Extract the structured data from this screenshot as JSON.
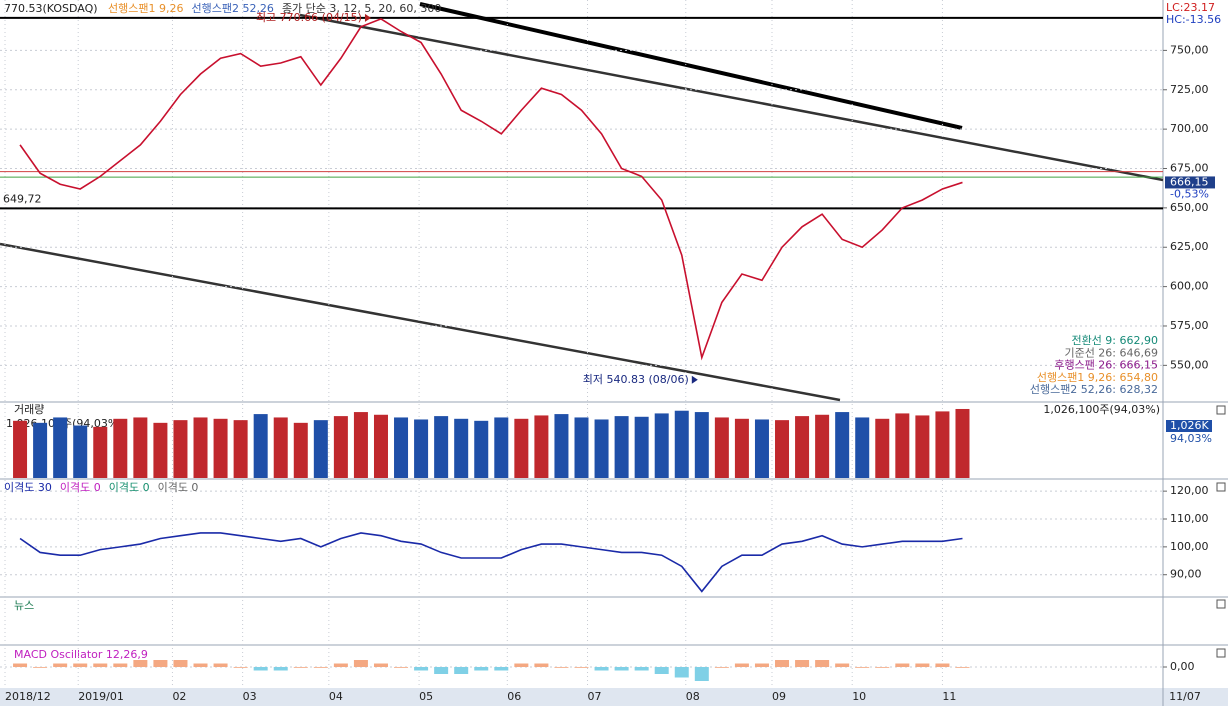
{
  "chart_data": [
    {
      "type": "line",
      "title": "770.53(KOSDAQ)",
      "legend_items": [
        {
          "text": "선행스팬1 9,26",
          "color": "#e8902a"
        },
        {
          "text": "선행스팬2 52,26",
          "color": "#3a62b8"
        },
        {
          "text": "종가 단순 3, 12, 5, 20, 60, 300",
          "color": "#333333"
        }
      ],
      "x": [
        0,
        1,
        2,
        3,
        4,
        5,
        6,
        7,
        8,
        9,
        10,
        11,
        12,
        13,
        14,
        15,
        16,
        17,
        18,
        19,
        20,
        21,
        22,
        23,
        24,
        25,
        26,
        27,
        28,
        29,
        30,
        31,
        32,
        33,
        34,
        35,
        36,
        37,
        38,
        39,
        40,
        41,
        42,
        43,
        44,
        45,
        46,
        47
      ],
      "series": [
        {
          "name": "종가",
          "color": "#c8102e",
          "values": [
            690,
            672,
            665,
            662,
            670,
            680,
            690,
            705,
            722,
            735,
            745,
            748,
            740,
            742,
            746,
            728,
            745,
            765,
            770,
            762,
            755,
            735,
            712,
            705,
            697,
            712,
            726,
            722,
            712,
            697,
            675,
            670,
            655,
            620,
            555,
            590,
            608,
            604,
            625,
            638,
            646,
            630,
            625,
            636,
            650,
            655,
            662,
            666.15
          ]
        }
      ],
      "xlim": [
        -1,
        57
      ],
      "xticks": [
        {
          "value": -0.75,
          "label": "2018/12"
        },
        {
          "value": 2.9,
          "label": "2019/01"
        },
        {
          "value": 7.6,
          "label": "02"
        },
        {
          "value": 11.1,
          "label": "03"
        },
        {
          "value": 15.4,
          "label": "04"
        },
        {
          "value": 19.9,
          "label": "05"
        },
        {
          "value": 24.3,
          "label": "06"
        },
        {
          "value": 28.3,
          "label": "07"
        },
        {
          "value": 33.2,
          "label": "08"
        },
        {
          "value": 37.5,
          "label": "09"
        },
        {
          "value": 41.5,
          "label": "10"
        },
        {
          "value": 46.0,
          "label": "11"
        }
      ],
      "last_date": "11/07",
      "ylim": [
        528,
        782
      ],
      "yticks": [
        {
          "value": 550,
          "label": "550,00"
        },
        {
          "value": 575,
          "label": "575,00"
        },
        {
          "value": 600,
          "label": "600,00"
        },
        {
          "value": 625,
          "label": "625,00"
        },
        {
          "value": 650,
          "label": "650,00"
        },
        {
          "value": 675,
          "label": "675,00"
        },
        {
          "value": 700,
          "label": "700,00"
        },
        {
          "value": 725,
          "label": "725,00"
        },
        {
          "value": 750,
          "label": "750,00"
        }
      ],
      "grid": true,
      "reference_lines": [
        {
          "value": 770.66,
          "color": "#000000"
        },
        {
          "value": 673,
          "color": "#d04040"
        },
        {
          "value": 669.5,
          "color": "#40a040"
        },
        {
          "value": 649.72,
          "label": "649,72",
          "color": "#000000"
        }
      ],
      "annotations": [
        {
          "text": "최고 770.66 (04/15)",
          "x": 17.5,
          "y": 770.66,
          "color": "#b02020"
        },
        {
          "text": "최저 540.83 (08/06)",
          "x": 33.8,
          "y": 540.83,
          "color": "#1a2a80"
        }
      ],
      "last_price": {
        "value": 666.15,
        "label": "666,15"
      },
      "change_label": "-0,53%",
      "lc_label": "LC:23.17",
      "hc_label": "HC:-13.56",
      "indicator_labels": [
        {
          "text": "전환선 9: 662,90",
          "color": "#168a78"
        },
        {
          "text": "기준선 26: 646,69",
          "color": "#666666"
        },
        {
          "text": "후행스팬 26: 666,15",
          "color": "#8b1a8b"
        },
        {
          "text": "선행스팬1 9,26: 654,80",
          "color": "#e8902a"
        },
        {
          "text": "선행스팬2 52,26: 628,32",
          "color": "#4a6a9a"
        }
      ]
    },
    {
      "type": "bar",
      "title": "거래량",
      "value_text": "1,026,100주(94,03%)",
      "box_label": "1,026K",
      "box_ratio": "94,03%",
      "colors": {
        "up": "#c0282d",
        "down": "#1f4fa8"
      },
      "values": [
        850,
        820,
        900,
        780,
        760,
        880,
        900,
        820,
        860,
        900,
        880,
        860,
        950,
        900,
        820,
        860,
        920,
        980,
        940,
        900,
        870,
        920,
        880,
        850,
        900,
        880,
        930,
        950,
        900,
        870,
        920,
        910,
        960,
        1000,
        980,
        900,
        880,
        870,
        860,
        920,
        940,
        980,
        900,
        880,
        960,
        930,
        990,
        1026
      ],
      "ylim": [
        0,
        1100
      ]
    },
    {
      "type": "line",
      "legend_items": [
        {
          "text": "이격도 0",
          "color": "#c020c0"
        },
        {
          "text": "이격도 0",
          "color": "#189070"
        },
        {
          "text": "이격도 0",
          "color": "#666666"
        }
      ],
      "series": [
        {
          "name": "이격도 30",
          "color": "#1a2aa8",
          "values": [
            103,
            98,
            97,
            97,
            99,
            100,
            101,
            103,
            104,
            105,
            105,
            104,
            103,
            102,
            103,
            100,
            103,
            105,
            104,
            102,
            101,
            98,
            96,
            96,
            96,
            99,
            101,
            101,
            100,
            99,
            98,
            98,
            97,
            93,
            84,
            93,
            97,
            97,
            101,
            102,
            104,
            101,
            100,
            101,
            102,
            102,
            102,
            103
          ]
        }
      ],
      "ylim": [
        82,
        124
      ],
      "yticks": [
        {
          "value": 90,
          "label": "90,00"
        },
        {
          "value": 100,
          "label": "100,00"
        },
        {
          "value": 110,
          "label": "110,00"
        },
        {
          "value": 120,
          "label": "120,00"
        }
      ],
      "grid": true
    },
    {
      "type": "text",
      "title": "뉴스"
    },
    {
      "type": "oscillator",
      "title": "MACD Oscillator 12,26,9",
      "colors": {
        "up": "#f4a882",
        "down": "#7fd0e6"
      },
      "values": [
        1,
        0,
        1,
        1,
        1,
        1,
        2,
        2,
        2,
        1,
        1,
        0,
        -1,
        -1,
        0,
        0,
        1,
        2,
        1,
        0,
        -1,
        -2,
        -2,
        -1,
        -1,
        1,
        1,
        0,
        0,
        -1,
        -1,
        -1,
        -2,
        -3,
        -4,
        0,
        1,
        1,
        2,
        2,
        2,
        1,
        0,
        0,
        1,
        1,
        1,
        0
      ],
      "ylim": [
        -6,
        6
      ],
      "yticks": [
        {
          "value": 0,
          "label": "0,00"
        }
      ],
      "grid": true
    }
  ]
}
